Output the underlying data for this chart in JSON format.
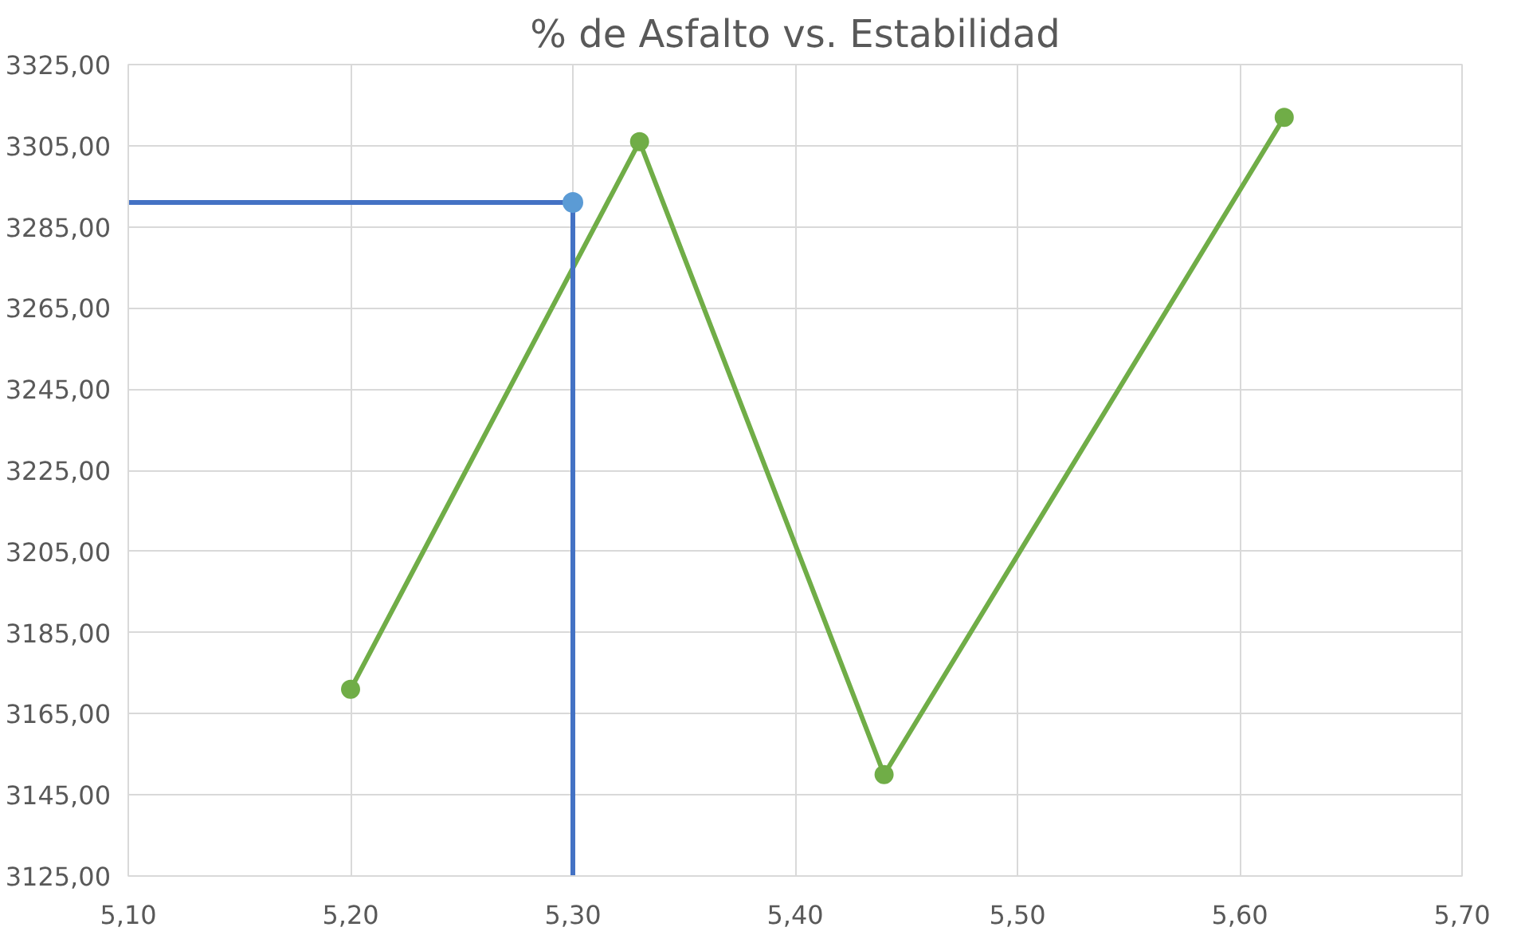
{
  "chart_data": {
    "type": "line",
    "title": "% de Asfalto vs. Estabilidad",
    "xlim": [
      5.1,
      5.7
    ],
    "xticks": [
      {
        "value": 5.1,
        "label": "5,10"
      },
      {
        "value": 5.2,
        "label": "5,20"
      },
      {
        "value": 5.3,
        "label": "5,30"
      },
      {
        "value": 5.4,
        "label": "5,40"
      },
      {
        "value": 5.5,
        "label": "5,50"
      },
      {
        "value": 5.6,
        "label": "5,60"
      },
      {
        "value": 5.7,
        "label": "5,70"
      }
    ],
    "ylim": [
      3125,
      3325
    ],
    "yticks": [
      {
        "value": 3125,
        "label": "3125,00"
      },
      {
        "value": 3145,
        "label": "3145,00"
      },
      {
        "value": 3165,
        "label": "3165,00"
      },
      {
        "value": 3185,
        "label": "3185,00"
      },
      {
        "value": 3205,
        "label": "3205,00"
      },
      {
        "value": 3225,
        "label": "3225,00"
      },
      {
        "value": 3245,
        "label": "3245,00"
      },
      {
        "value": 3265,
        "label": "3265,00"
      },
      {
        "value": 3285,
        "label": "3285,00"
      },
      {
        "value": 3305,
        "label": "3305,00"
      },
      {
        "value": 3325,
        "label": "3325,00"
      }
    ],
    "grid": true,
    "series": [
      {
        "color": "#70ad47",
        "marker": "circle",
        "x": [
          5.2,
          5.33,
          5.44,
          5.62
        ],
        "values": [
          3171,
          3306,
          3150,
          3312
        ]
      },
      {
        "color": "#4472c4",
        "marker": "none",
        "x": [
          5.1,
          5.3,
          5.3
        ],
        "values": [
          3291,
          3291,
          3125
        ]
      },
      {
        "type": "scatter",
        "color": "#5b9bd5",
        "marker": "circle",
        "x": [
          5.3
        ],
        "values": [
          3291
        ]
      }
    ]
  }
}
